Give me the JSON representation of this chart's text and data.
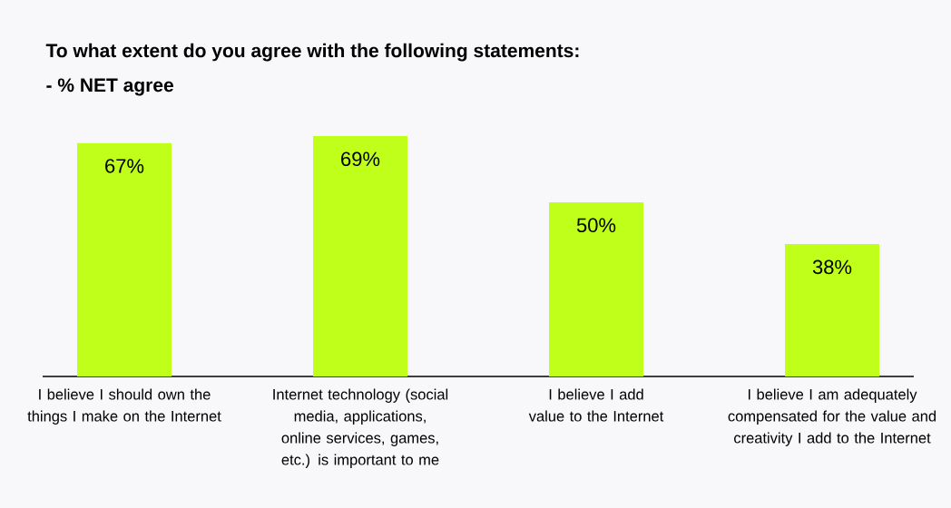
{
  "chart_data": {
    "type": "bar",
    "title": "To what extent do you agree with the following statements:",
    "subtitle": "- % NET agree",
    "categories": [
      "I believe I should own the things I make on the Internet",
      "Internet technology (social media, applications, online services, games, etc.) is important to me",
      "I believe I add value to the Internet",
      "I believe I am adequately compensated for the value and creativity I add to the Internet"
    ],
    "values": [
      67,
      69,
      50,
      38
    ],
    "value_labels": [
      "67%",
      "69%",
      "50%",
      "38%"
    ],
    "color": "#bfff1a"
  }
}
